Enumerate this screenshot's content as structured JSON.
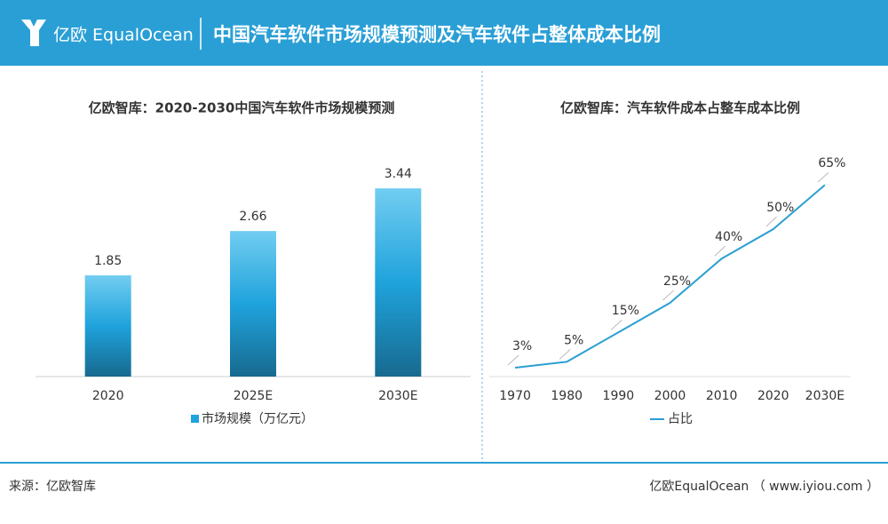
{
  "header": {
    "logo": "亿欧 EqualOcean",
    "title": "中国汽车软件市场规模预测及汽车软件占整体成本比例"
  },
  "chart_data": [
    {
      "type": "bar",
      "title": "亿欧智库：2020-2030中国汽车软件市场规模预测",
      "categories": [
        "2020",
        "2025E",
        "2030E"
      ],
      "series": [
        {
          "name": "市场规模（万亿元）",
          "color": "#1fa3dc",
          "values": [
            1.85,
            2.66,
            3.44
          ]
        }
      ]
    },
    {
      "type": "line",
      "title": "亿欧智库：汽车软件成本占整车成本比例",
      "categories": [
        "1970",
        "1980",
        "1990",
        "2000",
        "2010",
        "2020",
        "2030E"
      ],
      "series": [
        {
          "name": "占比",
          "color": "#2b9fd3",
          "values": [
            3,
            5,
            15,
            25,
            40,
            50,
            65
          ],
          "value_labels": [
            "3%",
            "5%",
            "15%",
            "25%",
            "40%",
            "50%",
            "65%"
          ]
        }
      ]
    }
  ],
  "footer": {
    "source": "来源：亿欧智库",
    "brand": "亿欧EqualOcean （ www.iyiou.com ）"
  }
}
